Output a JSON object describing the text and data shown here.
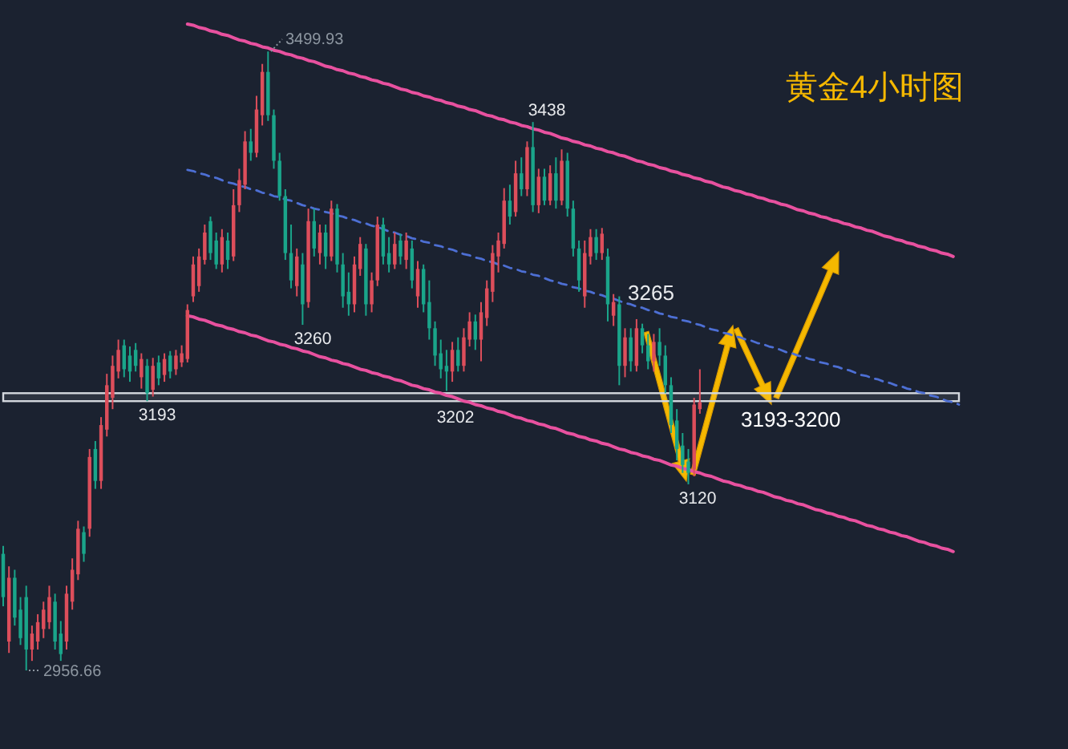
{
  "chart_data": {
    "type": "candlestick",
    "title": "黄金4小时图",
    "categories": [
      null,
      null,
      null,
      null,
      null,
      null,
      null,
      null,
      null,
      null,
      null,
      null,
      null,
      null,
      null,
      null,
      null,
      null,
      null,
      null,
      null,
      null,
      null,
      null,
      null,
      null,
      null,
      null,
      null,
      null,
      null,
      null,
      null,
      null,
      null,
      null,
      null,
      null,
      null,
      null,
      null,
      null,
      null,
      null,
      null,
      null,
      null,
      null,
      null,
      null,
      null,
      null,
      null,
      null,
      null,
      null,
      null,
      null,
      null,
      null,
      null,
      null,
      null,
      null,
      null,
      null,
      null,
      null,
      null,
      null,
      null,
      null,
      null,
      null,
      null,
      null,
      null,
      null,
      null,
      null,
      null,
      null,
      null,
      null,
      null,
      null,
      null,
      null,
      null,
      null,
      null,
      null,
      null,
      null,
      null,
      null,
      null,
      null,
      null,
      null,
      null,
      null,
      null,
      null,
      null,
      null,
      null,
      null,
      null,
      null,
      null,
      null,
      null,
      null,
      null,
      null,
      null,
      null,
      null,
      null,
      null,
      null,
      null,
      null,
      null,
      null,
      null,
      null,
      null,
      null,
      null,
      null,
      null,
      null,
      null,
      null,
      null,
      null,
      null,
      null,
      null,
      null,
      null,
      null,
      null,
      null,
      null,
      null,
      null,
      null,
      null,
      null,
      null,
      null,
      null,
      null,
      null,
      null,
      null,
      null,
      null,
      null,
      null,
      null,
      null,
      null,
      null
    ],
    "ohlc": [
      [
        3059,
        3066,
        3013,
        3021
      ],
      [
        2982,
        3048,
        2972,
        3038
      ],
      [
        3038,
        3045,
        2996,
        3003
      ],
      [
        3010,
        3021,
        2979,
        2985
      ],
      [
        3021,
        3031,
        2956.66,
        2975
      ],
      [
        2975,
        2996,
        2965,
        2989
      ],
      [
        2982,
        3006,
        2975,
        2999
      ],
      [
        2993,
        3017,
        2985,
        3010
      ],
      [
        2999,
        3031,
        2993,
        3021
      ],
      [
        3017,
        3024,
        2975,
        2982
      ],
      [
        2989,
        3000,
        2965,
        2971
      ],
      [
        2982,
        3031,
        2975,
        3024
      ],
      [
        3017,
        3055,
        3010,
        3045
      ],
      [
        3041,
        3088,
        3036,
        3081
      ],
      [
        3078,
        3083,
        3052,
        3059
      ],
      [
        3081,
        3151,
        3074,
        3144
      ],
      [
        3151,
        3158,
        3116,
        3123
      ],
      [
        3123,
        3179,
        3116,
        3172
      ],
      [
        3168,
        3217,
        3162,
        3207
      ],
      [
        3196,
        3233,
        3186,
        3224
      ],
      [
        3219,
        3247,
        3213,
        3238
      ],
      [
        3242,
        3247,
        3214,
        3221
      ],
      [
        3233,
        3241,
        3210,
        3219
      ],
      [
        3238,
        3244,
        3219,
        3224
      ],
      [
        3214,
        3235,
        3204,
        3230
      ],
      [
        3224,
        3230,
        3193,
        3200
      ],
      [
        3203,
        3231,
        3197,
        3224
      ],
      [
        3227,
        3233,
        3207,
        3213
      ],
      [
        3216,
        3235,
        3210,
        3230
      ],
      [
        3233,
        3237,
        3213,
        3219
      ],
      [
        3221,
        3238,
        3216,
        3233
      ],
      [
        3227,
        3242,
        3223,
        3235
      ],
      [
        3230,
        3278,
        3227,
        3273
      ],
      [
        3285,
        3320,
        3280,
        3313
      ],
      [
        3294,
        3327,
        3289,
        3320
      ],
      [
        3317,
        3348,
        3313,
        3341
      ],
      [
        3351,
        3355,
        3317,
        3323
      ],
      [
        3334,
        3341,
        3309,
        3313
      ],
      [
        3313,
        3344,
        3306,
        3337
      ],
      [
        3334,
        3341,
        3309,
        3317
      ],
      [
        3320,
        3379,
        3316,
        3365
      ],
      [
        3365,
        3397,
        3359,
        3387
      ],
      [
        3383,
        3430,
        3379,
        3421
      ],
      [
        3421,
        3432,
        3404,
        3411
      ],
      [
        3411,
        3461,
        3407,
        3449
      ],
      [
        3444,
        3489,
        3435,
        3482
      ],
      [
        3482,
        3499.93,
        3439,
        3444
      ],
      [
        3444,
        3449,
        3397,
        3404
      ],
      [
        3404,
        3411,
        3369,
        3373
      ],
      [
        3373,
        3379,
        3317,
        3323
      ],
      [
        3323,
        3348,
        3292,
        3299
      ],
      [
        3294,
        3327,
        3285,
        3320
      ],
      [
        3313,
        3323,
        3260,
        3278
      ],
      [
        3280,
        3362,
        3275,
        3351
      ],
      [
        3351,
        3362,
        3320,
        3327
      ],
      [
        3323,
        3348,
        3313,
        3341
      ],
      [
        3341,
        3348,
        3309,
        3320
      ],
      [
        3320,
        3369,
        3316,
        3362
      ],
      [
        3362,
        3366,
        3306,
        3313
      ],
      [
        3313,
        3323,
        3275,
        3285
      ],
      [
        3289,
        3306,
        3268,
        3278
      ],
      [
        3278,
        3320,
        3271,
        3313
      ],
      [
        3309,
        3337,
        3303,
        3331
      ],
      [
        3327,
        3331,
        3268,
        3278
      ],
      [
        3278,
        3306,
        3271,
        3299
      ],
      [
        3299,
        3355,
        3294,
        3348
      ],
      [
        3348,
        3354,
        3313,
        3320
      ],
      [
        3323,
        3337,
        3306,
        3313
      ],
      [
        3313,
        3341,
        3309,
        3331
      ],
      [
        3334,
        3340,
        3313,
        3320
      ],
      [
        3317,
        3341,
        3309,
        3334
      ],
      [
        3327,
        3334,
        3292,
        3299
      ],
      [
        3285,
        3316,
        3275,
        3309
      ],
      [
        3309,
        3313,
        3271,
        3278
      ],
      [
        3280,
        3299,
        3247,
        3257
      ],
      [
        3257,
        3263,
        3224,
        3233
      ],
      [
        3235,
        3247,
        3213,
        3221
      ],
      [
        3224,
        3238,
        3202,
        3219
      ],
      [
        3219,
        3245,
        3210,
        3238
      ],
      [
        3238,
        3249,
        3219,
        3224
      ],
      [
        3224,
        3257,
        3219,
        3249
      ],
      [
        3247,
        3271,
        3241,
        3263
      ],
      [
        3263,
        3269,
        3238,
        3247
      ],
      [
        3247,
        3280,
        3228,
        3271
      ],
      [
        3266,
        3299,
        3259,
        3292
      ],
      [
        3289,
        3330,
        3280,
        3323
      ],
      [
        3320,
        3341,
        3306,
        3334
      ],
      [
        3331,
        3380,
        3327,
        3369
      ],
      [
        3369,
        3383,
        3348,
        3355
      ],
      [
        3359,
        3404,
        3355,
        3393
      ],
      [
        3393,
        3407,
        3373,
        3379
      ],
      [
        3379,
        3421,
        3373,
        3416
      ],
      [
        3416,
        3438,
        3359,
        3365
      ],
      [
        3365,
        3397,
        3358,
        3390
      ],
      [
        3390,
        3397,
        3365,
        3369
      ],
      [
        3369,
        3400,
        3365,
        3393
      ],
      [
        3393,
        3407,
        3362,
        3369
      ],
      [
        3369,
        3414,
        3365,
        3404
      ],
      [
        3404,
        3411,
        3355,
        3362
      ],
      [
        3362,
        3369,
        3320,
        3327
      ],
      [
        3327,
        3334,
        3289,
        3299
      ],
      [
        3285,
        3334,
        3275,
        3323
      ],
      [
        3320,
        3344,
        3313,
        3337
      ],
      [
        3337,
        3344,
        3317,
        3323
      ],
      [
        3323,
        3345,
        3317,
        3340
      ],
      [
        3320,
        3327,
        3263,
        3278
      ],
      [
        3268,
        3287,
        3259,
        3280
      ],
      [
        3278,
        3285,
        3207,
        3224
      ],
      [
        3224,
        3257,
        3214,
        3249
      ],
      [
        3249,
        3257,
        3219,
        3228
      ],
      [
        3224,
        3265,
        3219,
        3257
      ],
      [
        3257,
        3261,
        3235,
        3242
      ],
      [
        3242,
        3252,
        3221,
        3228
      ],
      [
        3228,
        3252,
        3219,
        3245
      ],
      [
        3245,
        3257,
        3224,
        3233
      ],
      [
        3233,
        3242,
        3200,
        3207
      ],
      [
        3207,
        3214,
        3165,
        3172
      ],
      [
        3176,
        3186,
        3141,
        3151
      ],
      [
        3154,
        3165,
        3130,
        3137
      ],
      [
        3140,
        3151,
        3120,
        3130
      ],
      [
        3133,
        3196,
        3127,
        3190
      ],
      [
        3186,
        3221,
        3182,
        3192
      ],
      null,
      null,
      null,
      null,
      null,
      null,
      null,
      null,
      null,
      null,
      null,
      null,
      null,
      null,
      null,
      null,
      null,
      null,
      null,
      null,
      null,
      null,
      null,
      null,
      null,
      null,
      null,
      null,
      null,
      null,
      null,
      null,
      null,
      null,
      null,
      null,
      null,
      null,
      null,
      null,
      null,
      null,
      null,
      null,
      null
    ],
    "colors": [
      "#1aa58a",
      "#dd4e5b",
      "#1aa58a",
      "#1aa58a",
      "#1aa58a",
      "#dd4e5b",
      "#dd4e5b",
      "#dd4e5b",
      "#dd4e5b",
      "#1aa58a",
      "#1aa58a",
      "#dd4e5b",
      "#dd4e5b",
      "#dd4e5b",
      "#1aa58a",
      "#dd4e5b",
      "#1aa58a",
      "#dd4e5b",
      "#dd4e5b",
      "#dd4e5b",
      "#dd4e5b",
      "#1aa58a",
      "#1aa58a",
      "#1aa58a",
      "#dd4e5b",
      "#1aa58a",
      "#dd4e5b",
      "#1aa58a",
      "#dd4e5b",
      "#1aa58a",
      "#dd4e5b",
      "#dd4e5b",
      "#dd4e5b",
      "#dd4e5b",
      "#dd4e5b",
      "#dd4e5b",
      "#1aa58a",
      "#1aa58a",
      "#dd4e5b",
      "#1aa58a",
      "#dd4e5b",
      "#dd4e5b",
      "#dd4e5b",
      "#1aa58a",
      "#dd4e5b",
      "#dd4e5b",
      "#1aa58a",
      "#1aa58a",
      "#1aa58a",
      "#1aa58a",
      "#1aa58a",
      "#dd4e5b",
      "#1aa58a",
      "#dd4e5b",
      "#1aa58a",
      "#dd4e5b",
      "#1aa58a",
      "#dd4e5b",
      "#1aa58a",
      "#1aa58a",
      "#1aa58a",
      "#dd4e5b",
      "#dd4e5b",
      "#1aa58a",
      "#dd4e5b",
      "#dd4e5b",
      "#1aa58a",
      "#1aa58a",
      "#dd4e5b",
      "#1aa58a",
      "#dd4e5b",
      "#1aa58a",
      "#dd4e5b",
      "#1aa58a",
      "#1aa58a",
      "#1aa58a",
      "#1aa58a",
      "#1aa58a",
      "#dd4e5b",
      "#1aa58a",
      "#dd4e5b",
      "#dd4e5b",
      "#1aa58a",
      "#dd4e5b",
      "#dd4e5b",
      "#dd4e5b",
      "#dd4e5b",
      "#dd4e5b",
      "#1aa58a",
      "#dd4e5b",
      "#1aa58a",
      "#dd4e5b",
      "#1aa58a",
      "#dd4e5b",
      "#1aa58a",
      "#dd4e5b",
      "#1aa58a",
      "#dd4e5b",
      "#1aa58a",
      "#1aa58a",
      "#1aa58a",
      "#dd4e5b",
      "#dd4e5b",
      "#1aa58a",
      "#dd4e5b",
      "#1aa58a",
      "#dd4e5b",
      "#1aa58a",
      "#dd4e5b",
      "#1aa58a",
      "#dd4e5b",
      "#1aa58a",
      "#1aa58a",
      "#dd4e5b",
      "#1aa58a",
      "#1aa58a",
      "#1aa58a",
      "#1aa58a",
      "#1aa58a",
      "#1aa58a",
      "#dd4e5b",
      "#dd4e5b",
      null,
      null,
      null,
      null,
      null,
      null,
      null,
      null,
      null,
      null,
      null,
      null,
      null,
      null,
      null,
      null,
      null,
      null,
      null,
      null,
      null,
      null,
      null,
      null,
      null,
      null,
      null,
      null,
      null,
      null,
      null,
      null,
      null,
      null,
      null,
      null,
      null,
      null,
      null,
      null,
      null,
      null,
      null,
      null,
      null
    ],
    "series": [
      {
        "type": "line",
        "color": "#e8519f",
        "values": [
          null,
          null,
          null,
          null,
          null,
          null,
          null,
          null,
          null,
          null,
          null,
          null,
          null,
          null,
          null,
          null,
          null,
          null,
          null,
          null,
          null,
          null,
          null,
          null,
          null,
          null,
          null,
          null,
          null,
          null,
          null,
          null,
          3524,
          3523,
          3521,
          3520,
          3518,
          3517,
          3515,
          3514,
          3512,
          3510,
          3509,
          3507,
          3506,
          3504,
          3503,
          3501,
          3500,
          3498,
          3497,
          3495,
          3494,
          3492,
          3491,
          3489,
          3487,
          3486,
          3484,
          3483,
          3481,
          3480,
          3478,
          3477,
          3475,
          3474,
          3472,
          3471,
          3469,
          3467,
          3466,
          3464,
          3463,
          3461,
          3460,
          3458,
          3457,
          3455,
          3454,
          3452,
          3451,
          3449,
          3448,
          3446,
          3444,
          3443,
          3441,
          3440,
          3438,
          3437,
          3435,
          3434,
          3432,
          3431,
          3429,
          3428,
          3426,
          3424,
          3423,
          3421,
          3420,
          3418,
          3417,
          3415,
          3414,
          3412,
          3411,
          3409,
          3408,
          3406,
          3404,
          3403,
          3401,
          3400,
          3398,
          3397,
          3395,
          3394,
          3392,
          3391,
          3389,
          3388,
          3386,
          3385,
          3383,
          3381,
          3380,
          3378,
          3377,
          3375,
          3374,
          3372,
          3371,
          3369,
          3368,
          3366,
          3365,
          3363,
          3361,
          3360,
          3358,
          3357,
          3355,
          3354,
          3352,
          3351,
          3349,
          3348,
          3346,
          3345,
          3343,
          3342,
          3340,
          3338,
          3337,
          3335,
          3334,
          3332,
          3331,
          3329,
          3328,
          3326,
          3325,
          3323,
          3322,
          3320,
          null
        ]
      },
      {
        "type": "line",
        "color": "#4d6fd4",
        "line_style": "dashed",
        "values": [
          null,
          null,
          null,
          null,
          null,
          null,
          null,
          null,
          null,
          null,
          null,
          null,
          null,
          null,
          null,
          null,
          null,
          null,
          null,
          null,
          null,
          null,
          null,
          null,
          null,
          null,
          null,
          null,
          null,
          null,
          null,
          null,
          3396,
          3395,
          3393,
          3392,
          3390,
          3389,
          3387,
          3385,
          3384,
          3382,
          3381,
          3379,
          3378,
          3376,
          3375,
          3373,
          3372,
          3370,
          3369,
          3367,
          3365,
          3364,
          3362,
          3361,
          3359,
          3358,
          3356,
          3355,
          3353,
          3352,
          3350,
          3349,
          3347,
          3346,
          3344,
          3342,
          3341,
          3339,
          3338,
          3336,
          3335,
          3333,
          3332,
          3330,
          3329,
          3327,
          3326,
          3324,
          3322,
          3321,
          3319,
          3318,
          3316,
          3315,
          3313,
          3312,
          3310,
          3309,
          3307,
          3306,
          3304,
          3303,
          3301,
          3299,
          3298,
          3296,
          3295,
          3293,
          3292,
          3290,
          3289,
          3287,
          3286,
          3284,
          3283,
          3281,
          3279,
          3278,
          3276,
          3275,
          3273,
          3272,
          3270,
          3269,
          3267,
          3266,
          3264,
          3263,
          3261,
          3260,
          3258,
          3256,
          3255,
          3253,
          3252,
          3250,
          3249,
          3247,
          3246,
          3244,
          3243,
          3241,
          3240,
          3238,
          3236,
          3235,
          3233,
          3232,
          3230,
          3229,
          3227,
          3226,
          3224,
          3223,
          3221,
          3220,
          3218,
          3216,
          3215,
          3213,
          3212,
          3210,
          3209,
          3207,
          3206,
          3204,
          3203,
          3201,
          3200,
          3198,
          3197,
          3195,
          3193,
          3192,
          3190
        ]
      },
      {
        "type": "line",
        "color": "#e8519f",
        "values": [
          null,
          null,
          null,
          null,
          null,
          null,
          null,
          null,
          null,
          null,
          null,
          null,
          null,
          null,
          null,
          null,
          null,
          null,
          null,
          null,
          null,
          null,
          null,
          null,
          null,
          null,
          null,
          null,
          null,
          null,
          null,
          null,
          3268,
          3267,
          3265,
          3264,
          3262,
          3260,
          3259,
          3257,
          3256,
          3254,
          3253,
          3251,
          3250,
          3248,
          3246,
          3245,
          3243,
          3242,
          3240,
          3239,
          3237,
          3236,
          3234,
          3232,
          3231,
          3229,
          3228,
          3226,
          3225,
          3223,
          3221,
          3220,
          3218,
          3217,
          3215,
          3214,
          3212,
          3211,
          3209,
          3207,
          3206,
          3204,
          3203,
          3201,
          3200,
          3198,
          3197,
          3195,
          3193,
          3192,
          3190,
          3189,
          3187,
          3186,
          3184,
          3183,
          3181,
          3179,
          3178,
          3176,
          3175,
          3173,
          3172,
          3170,
          3169,
          3167,
          3165,
          3164,
          3162,
          3161,
          3159,
          3158,
          3156,
          3155,
          3153,
          3151,
          3150,
          3148,
          3147,
          3145,
          3144,
          3142,
          3141,
          3139,
          3137,
          3136,
          3134,
          3133,
          3131,
          3130,
          3128,
          3127,
          3125,
          3123,
          3122,
          3120,
          3119,
          3117,
          3116,
          3114,
          3113,
          3111,
          3109,
          3108,
          3106,
          3105,
          3103,
          3102,
          3100,
          3098,
          3097,
          3095,
          3094,
          3092,
          3091,
          3089,
          3088,
          3086,
          3084,
          3083,
          3081,
          3080,
          3078,
          3077,
          3075,
          3074,
          3072,
          3070,
          3069,
          3067,
          3066,
          3064,
          3063,
          3061,
          null
        ]
      }
    ],
    "bands": [
      {
        "axis": "y",
        "from": 3193,
        "to": 3200,
        "label": "3193-3200",
        "color": "#d4d8de"
      }
    ],
    "annotations": [
      "3499.93",
      "3438",
      "3260",
      "3202",
      "3265",
      "3193",
      "3120",
      "2956.66"
    ]
  }
}
